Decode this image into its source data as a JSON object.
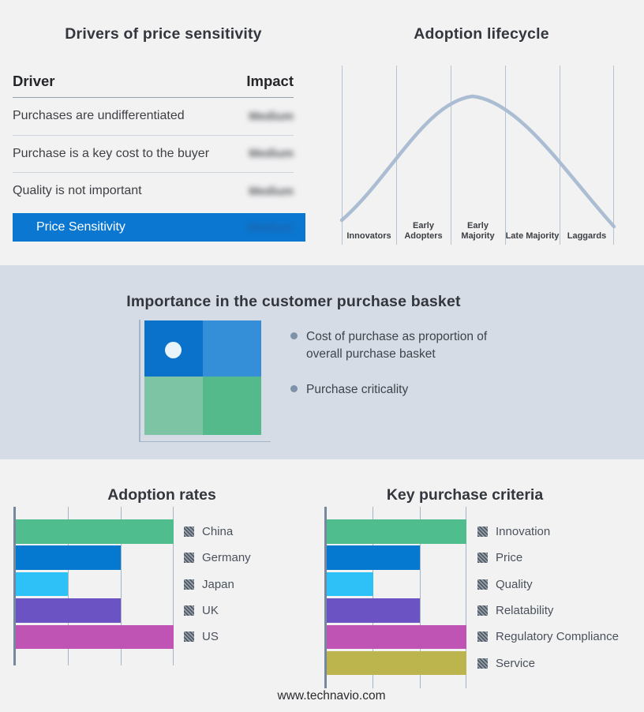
{
  "bands": {
    "top_bg": "#f2f2f3",
    "mid_bg": "#d5dce5",
    "bottom_bg": "#f2f2f3"
  },
  "drivers_panel": {
    "title": "Drivers of price sensitivity",
    "columns": {
      "driver": "Driver",
      "impact": "Impact"
    },
    "rows": [
      {
        "driver": "Purchases are undifferentiated",
        "impact": "Medium"
      },
      {
        "driver": "Purchase is a key cost to the buyer",
        "impact": "Medium"
      },
      {
        "driver": "Quality is not important",
        "impact": "Medium"
      }
    ],
    "highlight": {
      "label": "Price Sensitivity",
      "impact": "Medium",
      "bg": "#0b77d0"
    }
  },
  "lifecycle_panel": {
    "title": "Adoption lifecycle",
    "stages": [
      "Innovators",
      "Early Adopters",
      "Early Majority",
      "Late Majority",
      "Laggards"
    ],
    "curve_color": "#abbdd2"
  },
  "basket_panel": {
    "title": "Importance in the customer purchase basket",
    "bullets": [
      "Cost of purchase as proportion of overall purchase basket",
      "Purchase criticality"
    ],
    "quadrant": {
      "top_left": "#0b72cc",
      "top_right": "#358ed8",
      "bottom_left": "#7dc4a4",
      "bottom_right": "#54ba8c",
      "dot": "#e9f3fa"
    }
  },
  "footer": {
    "url": "www.technavio.com"
  },
  "chart_data": [
    {
      "type": "bar",
      "orientation": "horizontal",
      "title": "Adoption rates",
      "categories": [
        "China",
        "Germany",
        "Japan",
        "UK",
        "US"
      ],
      "values": [
        3,
        2,
        1,
        2,
        3
      ],
      "colors": [
        "#4fbd8e",
        "#0578cf",
        "#2ec1f7",
        "#6b53c3",
        "#bf54b4"
      ],
      "xlim": [
        0,
        3
      ],
      "xlabel": "",
      "ylabel": "",
      "grid": true,
      "gridline_count": 3,
      "axis_tick_labels": "none",
      "legend_position": "right"
    },
    {
      "type": "bar",
      "orientation": "horizontal",
      "title": "Key purchase criteria",
      "categories": [
        "Innovation",
        "Price",
        "Quality",
        "Relatability",
        "Regulatory Compliance",
        "Service"
      ],
      "values": [
        3,
        2,
        1,
        2,
        3,
        3
      ],
      "colors": [
        "#4fbd8e",
        "#0578cf",
        "#2ec1f7",
        "#6b53c3",
        "#bf54b4",
        "#bcb54d"
      ],
      "xlim": [
        0,
        3
      ],
      "xlabel": "",
      "ylabel": "",
      "grid": true,
      "gridline_count": 3,
      "axis_tick_labels": "none",
      "legend_position": "right"
    }
  ]
}
